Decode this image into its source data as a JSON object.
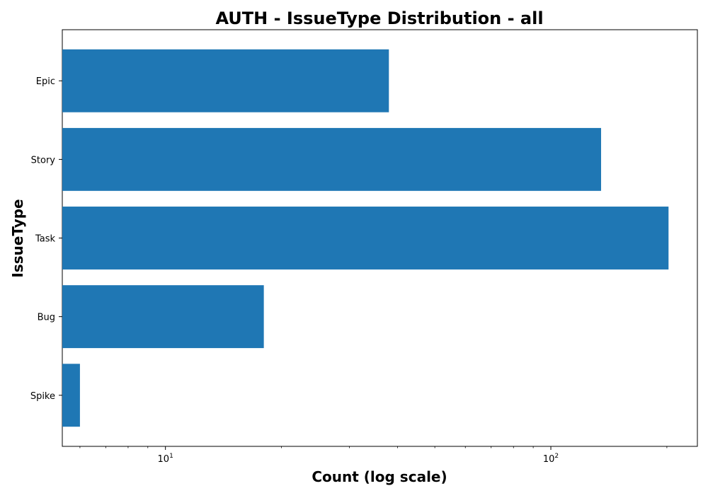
{
  "chart_data": {
    "type": "bar",
    "orientation": "horizontal",
    "title": "AUTH - IssueType Distribution - all",
    "xlabel": "Count (log scale)",
    "ylabel": "IssueType",
    "x_scale": "log",
    "xlim": [
      5.4,
      240
    ],
    "x_ticks": [
      {
        "base": "10",
        "exp": "1",
        "value": 10
      },
      {
        "base": "10",
        "exp": "2",
        "value": 100
      }
    ],
    "categories": [
      "Epic",
      "Story",
      "Task",
      "Bug",
      "Spike"
    ],
    "values": [
      38,
      135,
      202,
      18,
      6
    ],
    "bar_color": "#1f77b4",
    "grid": false,
    "legend": "none"
  }
}
